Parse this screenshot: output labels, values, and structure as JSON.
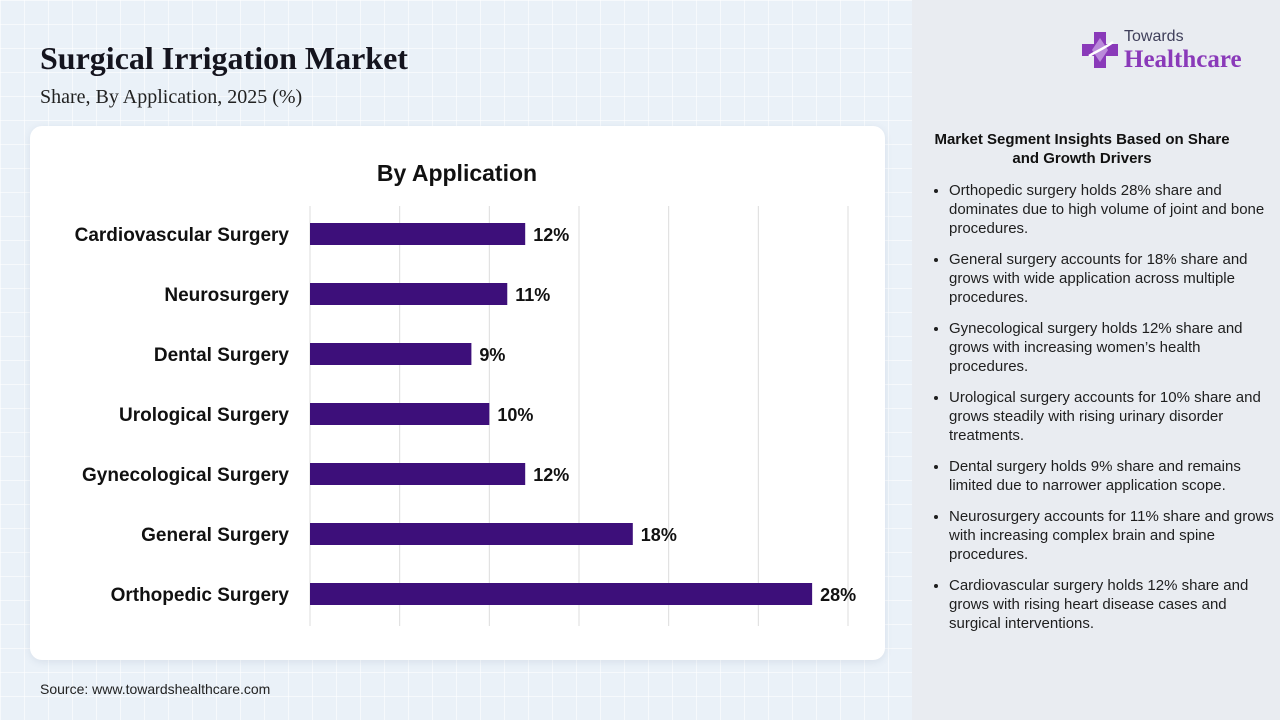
{
  "header": {
    "title": "Surgical Irrigation Market",
    "subtitle": "Share, By Application, 2025 (%)"
  },
  "chart_data": {
    "type": "bar",
    "orientation": "horizontal",
    "title": "By Application",
    "categories": [
      "Cardiovascular Surgery",
      "Neurosurgery",
      "Dental Surgery",
      "Urological Surgery",
      "Gynecological Surgery",
      "General Surgery",
      "Orthopedic Surgery"
    ],
    "values": [
      12,
      11,
      9,
      10,
      12,
      18,
      28
    ],
    "data_labels": [
      "12%",
      "11%",
      "9%",
      "10%",
      "12%",
      "18%",
      "28%"
    ],
    "xlim": [
      0,
      30
    ],
    "x_gridlines": [
      0,
      5,
      10,
      15,
      20,
      25,
      30
    ],
    "grid": true,
    "legend": false,
    "bar_color": "#3d0f7a",
    "gridline_color": "#dcdcdc"
  },
  "source": "Source: www.towardshealthcare.com",
  "logo": {
    "top_text": "Towards",
    "bottom_text": "Healthcare",
    "icon": "medical-cross-icon",
    "brand_color": "#8a3ab9"
  },
  "insights": {
    "title": "Market Segment Insights Based on Share and Growth Drivers",
    "items": [
      "Orthopedic surgery holds 28% share and dominates due to high volume of joint and bone procedures.",
      "General surgery accounts for 18% share and grows with wide application across multiple procedures.",
      "Gynecological surgery holds 12% share and grows with increasing women’s health procedures.",
      "Urological surgery accounts for 10% share and grows steadily with rising urinary disorder treatments.",
      "Dental surgery holds 9% share and remains limited due to narrower application scope.",
      "Neurosurgery accounts for 11% share and grows with increasing complex brain and spine procedures.",
      "Cardiovascular surgery holds 12% share and grows with rising heart disease cases and surgical interventions."
    ]
  }
}
